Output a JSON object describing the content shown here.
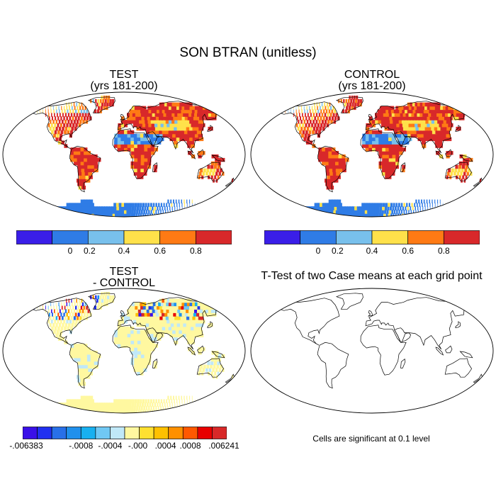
{
  "title": "SON BTRAN (unitless)",
  "panels": {
    "test": {
      "title": "TEST",
      "subtitle": "(yrs 181-200)"
    },
    "control": {
      "title": "CONTROL",
      "subtitle": "(yrs 181-200)"
    },
    "diff": {
      "title": "TEST",
      "subtitle": "- CONTROL"
    },
    "ttest": {
      "title": "T-Test of two Case means at each grid point"
    }
  },
  "colorbar_top": {
    "colors": [
      "#3a1ee8",
      "#2f7ce6",
      "#78c0ec",
      "#ffe14a",
      "#ff7a14",
      "#d8282a"
    ],
    "tick_labels": [
      "0",
      "0.2",
      "0.4",
      "0.6",
      "0.8"
    ]
  },
  "colorbar_diff": {
    "colors": [
      "#3a10e8",
      "#2030f0",
      "#2870e8",
      "#2090ec",
      "#18b0f0",
      "#70c8f4",
      "#c0e8f8",
      "#fff8a0",
      "#ffe030",
      "#ffc000",
      "#ff9000",
      "#ff5800",
      "#e80000",
      "#d82828"
    ],
    "tick_labels": [
      "-.006383",
      "-.0008",
      "-.0004",
      "-.000",
      ".0004",
      ".0008",
      ".006241"
    ]
  },
  "footnote": "Cells are significant at 0.1 level"
}
